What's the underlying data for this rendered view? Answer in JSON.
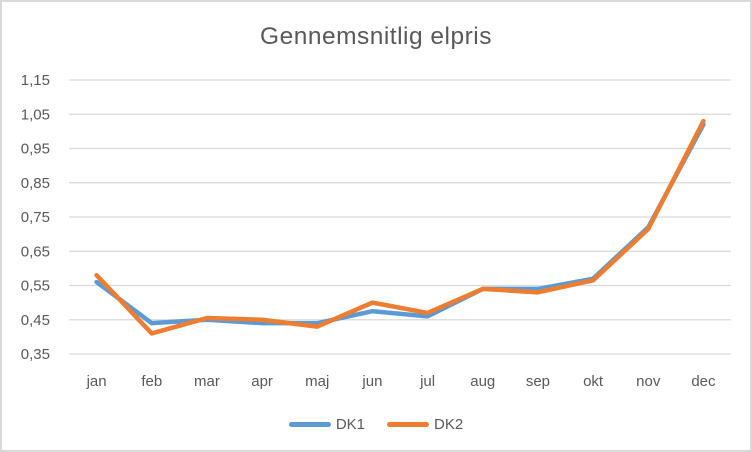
{
  "window": {
    "background_color": "#FFFFFF",
    "border_color": "#D9D9D9"
  },
  "chart_data": {
    "type": "line",
    "title": "Gennemsnitlig elpris",
    "categories": [
      "jan",
      "feb",
      "mar",
      "apr",
      "maj",
      "jun",
      "jul",
      "aug",
      "sep",
      "okt",
      "nov",
      "dec"
    ],
    "series": [
      {
        "name": "DK1",
        "color": "#5B9BD5",
        "values": [
          0.56,
          0.44,
          0.45,
          0.44,
          0.44,
          0.475,
          0.46,
          0.54,
          0.54,
          0.57,
          0.72,
          1.02
        ]
      },
      {
        "name": "DK2",
        "color": "#ED7D31",
        "values": [
          0.58,
          0.41,
          0.455,
          0.45,
          0.43,
          0.5,
          0.47,
          0.54,
          0.53,
          0.565,
          0.715,
          1.03
        ]
      }
    ],
    "xlabel": "",
    "ylabel": "",
    "ylim": [
      0.35,
      1.15
    ],
    "ytick_step": 0.1,
    "ytick_labels": [
      "1,15",
      "1,05",
      "0,95",
      "0,85",
      "0,75",
      "0,65",
      "0,55",
      "0,45",
      "0,35"
    ],
    "grid": true,
    "gridline_color": "#D9D9D9",
    "text_color": "#595959",
    "line_width": 4.5,
    "legend_position": "bottom"
  }
}
